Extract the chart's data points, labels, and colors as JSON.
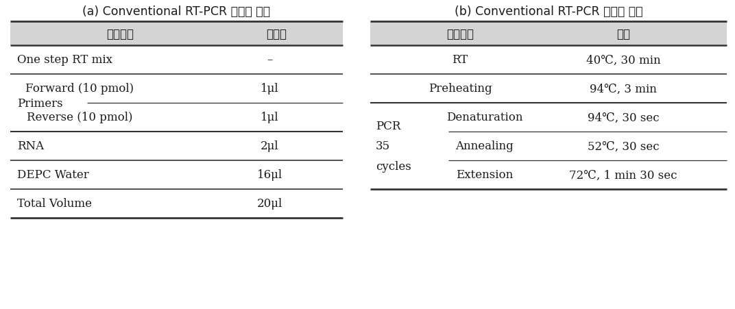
{
  "title_a": "(a) Conventional RT-PCR 반응액 조성",
  "title_b": "(b) Conventional RT-PCR 반응액 조건",
  "header_bg": "#d4d4d4",
  "bg_color": "#ffffff",
  "text_color": "#1a1a1a",
  "table_a_header": [
    "반응물질",
    "첨가량"
  ],
  "table_b_header": [
    "반응단계",
    "조건"
  ],
  "row_a": [
    {
      "left": "One step RT mix",
      "right": "–",
      "indent": 0,
      "group": ""
    },
    {
      "left": "Forward (10 pmol)",
      "right": "1μl",
      "indent": 1,
      "group": "Primers"
    },
    {
      "left": "Reverse (10 pmol)",
      "right": "1μl",
      "indent": 1,
      "group": ""
    },
    {
      "left": "RNA",
      "right": "2μl",
      "indent": 0,
      "group": ""
    },
    {
      "left": "DEPC Water",
      "right": "16μl",
      "indent": 0,
      "group": ""
    },
    {
      "left": "Total Volume",
      "right": "20μl",
      "indent": 0,
      "group": ""
    }
  ],
  "row_b": [
    {
      "left": "RT",
      "right": "40℃, 30 min",
      "indent": 0,
      "group": ""
    },
    {
      "left": "Preheating",
      "right": "94℃, 3 min",
      "indent": 0,
      "group": ""
    },
    {
      "left": "Denaturation",
      "right": "94℃, 30 sec",
      "indent": 1,
      "group": "PCR"
    },
    {
      "left": "Annealing",
      "right": "52℃, 30 sec",
      "indent": 1,
      "group": "35"
    },
    {
      "left": "Extension",
      "right": "72℃, 1 min 30 sec",
      "indent": 1,
      "group": "cycles"
    }
  ],
  "figw": 10.72,
  "figh": 4.52,
  "dpi": 100
}
